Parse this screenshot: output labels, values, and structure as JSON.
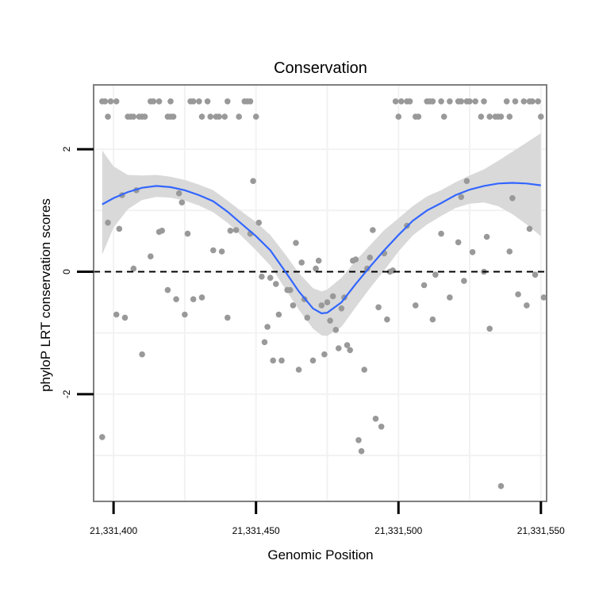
{
  "chart_data": {
    "type": "scatter",
    "title": "Conservation",
    "xlabel": "Genomic Position",
    "ylabel": "phyloP LRT conservation scores",
    "xlim": [
      21331393,
      21331552
    ],
    "ylim": [
      -3.75,
      3.05
    ],
    "x_ticks": [
      {
        "value": 21331400,
        "label": "21,331,400"
      },
      {
        "value": 21331450,
        "label": "21,331,450"
      },
      {
        "value": 21331500,
        "label": "21,331,500"
      },
      {
        "value": 21331550,
        "label": "21,331,550"
      }
    ],
    "y_ticks": [
      {
        "value": -2,
        "label": "-2"
      },
      {
        "value": 0,
        "label": "0"
      },
      {
        "value": 2,
        "label": "2"
      }
    ],
    "grid": true,
    "reference_line": {
      "y": 0,
      "style": "dashed"
    },
    "colors": {
      "points": "#999999",
      "smooth": "#3366ff",
      "ribbon": "#d9d9d9",
      "panel_border": "#7f7f7f",
      "grid": "#f2f2f2"
    },
    "points": [
      {
        "x": 21331396,
        "y": 2.78
      },
      {
        "x": 21331397,
        "y": 2.78
      },
      {
        "x": 21331399,
        "y": 2.78
      },
      {
        "x": 21331398,
        "y": 2.53
      },
      {
        "x": 21331401,
        "y": 2.78
      },
      {
        "x": 21331407,
        "y": 2.53
      },
      {
        "x": 21331406,
        "y": 2.53
      },
      {
        "x": 21331405,
        "y": 2.53
      },
      {
        "x": 21331409,
        "y": 2.53
      },
      {
        "x": 21331410,
        "y": 2.53
      },
      {
        "x": 21331411,
        "y": 2.53
      },
      {
        "x": 21331413,
        "y": 2.78
      },
      {
        "x": 21331414,
        "y": 2.78
      },
      {
        "x": 21331416,
        "y": 2.78
      },
      {
        "x": 21331420,
        "y": 2.78
      },
      {
        "x": 21331419,
        "y": 2.53
      },
      {
        "x": 21331420,
        "y": 2.53
      },
      {
        "x": 21331421,
        "y": 2.53
      },
      {
        "x": 21331427,
        "y": 2.78
      },
      {
        "x": 21331428,
        "y": 2.78
      },
      {
        "x": 21331430,
        "y": 2.78
      },
      {
        "x": 21331431,
        "y": 2.53
      },
      {
        "x": 21331433,
        "y": 2.78
      },
      {
        "x": 21331434,
        "y": 2.53
      },
      {
        "x": 21331436,
        "y": 2.53
      },
      {
        "x": 21331437,
        "y": 2.53
      },
      {
        "x": 21331439,
        "y": 2.53
      },
      {
        "x": 21331440,
        "y": 2.78
      },
      {
        "x": 21331444,
        "y": 2.53
      },
      {
        "x": 21331446,
        "y": 2.78
      },
      {
        "x": 21331447,
        "y": 2.78
      },
      {
        "x": 21331448,
        "y": 2.78
      },
      {
        "x": 21331450,
        "y": 2.53
      },
      {
        "x": 21331499,
        "y": 2.78
      },
      {
        "x": 21331500,
        "y": 2.53
      },
      {
        "x": 21331501,
        "y": 2.78
      },
      {
        "x": 21331503,
        "y": 2.78
      },
      {
        "x": 21331504,
        "y": 2.78
      },
      {
        "x": 21331506,
        "y": 2.53
      },
      {
        "x": 21331507,
        "y": 2.53
      },
      {
        "x": 21331510,
        "y": 2.78
      },
      {
        "x": 21331511,
        "y": 2.78
      },
      {
        "x": 21331512,
        "y": 2.78
      },
      {
        "x": 21331515,
        "y": 2.78
      },
      {
        "x": 21331516,
        "y": 2.53
      },
      {
        "x": 21331518,
        "y": 2.78
      },
      {
        "x": 21331521,
        "y": 2.78
      },
      {
        "x": 21331522,
        "y": 2.78
      },
      {
        "x": 21331524,
        "y": 2.78
      },
      {
        "x": 21331525,
        "y": 2.78
      },
      {
        "x": 21331527,
        "y": 2.78
      },
      {
        "x": 21331529,
        "y": 2.53
      },
      {
        "x": 21331530,
        "y": 2.78
      },
      {
        "x": 21331532,
        "y": 2.53
      },
      {
        "x": 21331534,
        "y": 2.53
      },
      {
        "x": 21331535,
        "y": 2.53
      },
      {
        "x": 21331536,
        "y": 2.53
      },
      {
        "x": 21331538,
        "y": 2.78
      },
      {
        "x": 21331539,
        "y": 2.53
      },
      {
        "x": 21331541,
        "y": 2.78
      },
      {
        "x": 21331544,
        "y": 2.78
      },
      {
        "x": 21331546,
        "y": 2.78
      },
      {
        "x": 21331547,
        "y": 2.78
      },
      {
        "x": 21331549,
        "y": 2.78
      },
      {
        "x": 21331550,
        "y": 2.53
      },
      {
        "x": 21331396,
        "y": -2.7
      },
      {
        "x": 21331398,
        "y": 0.8
      },
      {
        "x": 21331401,
        "y": -0.7
      },
      {
        "x": 21331402,
        "y": 0.7
      },
      {
        "x": 21331403,
        "y": 1.25
      },
      {
        "x": 21331404,
        "y": -0.75
      },
      {
        "x": 21331407,
        "y": 0.05
      },
      {
        "x": 21331408,
        "y": 1.33
      },
      {
        "x": 21331410,
        "y": -1.35
      },
      {
        "x": 21331413,
        "y": 0.25
      },
      {
        "x": 21331416,
        "y": 0.65
      },
      {
        "x": 21331417,
        "y": 0.67
      },
      {
        "x": 21331419,
        "y": -0.3
      },
      {
        "x": 21331422,
        "y": -0.45
      },
      {
        "x": 21331423,
        "y": 1.28
      },
      {
        "x": 21331424,
        "y": 1.13
      },
      {
        "x": 21331425,
        "y": -0.7
      },
      {
        "x": 21331426,
        "y": 0.62
      },
      {
        "x": 21331428,
        "y": -0.45
      },
      {
        "x": 21331431,
        "y": -0.42
      },
      {
        "x": 21331435,
        "y": 0.35
      },
      {
        "x": 21331438,
        "y": 0.33
      },
      {
        "x": 21331440,
        "y": -0.75
      },
      {
        "x": 21331441,
        "y": 0.67
      },
      {
        "x": 21331443,
        "y": 0.68
      },
      {
        "x": 21331448,
        "y": 0.62
      },
      {
        "x": 21331449,
        "y": 1.48
      },
      {
        "x": 21331451,
        "y": 0.8
      },
      {
        "x": 21331452,
        "y": -0.08
      },
      {
        "x": 21331453,
        "y": -1.15
      },
      {
        "x": 21331454,
        "y": -0.9
      },
      {
        "x": 21331455,
        "y": -0.1
      },
      {
        "x": 21331456,
        "y": -1.45
      },
      {
        "x": 21331457,
        "y": -0.2
      },
      {
        "x": 21331458,
        "y": -0.7
      },
      {
        "x": 21331459,
        "y": -1.45
      },
      {
        "x": 21331461,
        "y": -0.3
      },
      {
        "x": 21331462,
        "y": -0.3
      },
      {
        "x": 21331463,
        "y": -0.55
      },
      {
        "x": 21331464,
        "y": 0.47
      },
      {
        "x": 21331465,
        "y": -1.6
      },
      {
        "x": 21331466,
        "y": 0.15
      },
      {
        "x": 21331467,
        "y": -0.45
      },
      {
        "x": 21331468,
        "y": -0.75
      },
      {
        "x": 21331470,
        "y": -1.45
      },
      {
        "x": 21331471,
        "y": 0.05
      },
      {
        "x": 21331472,
        "y": 0.18
      },
      {
        "x": 21331473,
        "y": -0.55
      },
      {
        "x": 21331474,
        "y": -1.35
      },
      {
        "x": 21331475,
        "y": -0.5
      },
      {
        "x": 21331476,
        "y": -0.8
      },
      {
        "x": 21331477,
        "y": -0.4
      },
      {
        "x": 21331478,
        "y": -0.95
      },
      {
        "x": 21331479,
        "y": -1.25
      },
      {
        "x": 21331480,
        "y": -0.6
      },
      {
        "x": 21331481,
        "y": -0.42
      },
      {
        "x": 21331482,
        "y": -1.2
      },
      {
        "x": 21331483,
        "y": -1.28
      },
      {
        "x": 21331484,
        "y": 0.18
      },
      {
        "x": 21331485,
        "y": 0.2
      },
      {
        "x": 21331486,
        "y": -2.75
      },
      {
        "x": 21331487,
        "y": -2.93
      },
      {
        "x": 21331488,
        "y": -1.6
      },
      {
        "x": 21331489,
        "y": 0.05
      },
      {
        "x": 21331490,
        "y": 0.23
      },
      {
        "x": 21331491,
        "y": 0.68
      },
      {
        "x": 21331492,
        "y": -2.4
      },
      {
        "x": 21331493,
        "y": -0.58
      },
      {
        "x": 21331494,
        "y": -2.53
      },
      {
        "x": 21331495,
        "y": 0.3
      },
      {
        "x": 21331496,
        "y": -0.78
      },
      {
        "x": 21331497,
        "y": 0.0
      },
      {
        "x": 21331498,
        "y": 0.02
      },
      {
        "x": 21331503,
        "y": 0.75
      },
      {
        "x": 21331506,
        "y": -0.55
      },
      {
        "x": 21331509,
        "y": -0.22
      },
      {
        "x": 21331512,
        "y": -0.78
      },
      {
        "x": 21331513,
        "y": -0.05
      },
      {
        "x": 21331515,
        "y": 0.62
      },
      {
        "x": 21331518,
        "y": -0.42
      },
      {
        "x": 21331521,
        "y": 0.48
      },
      {
        "x": 21331522,
        "y": 1.22
      },
      {
        "x": 21331523,
        "y": -0.15
      },
      {
        "x": 21331524,
        "y": 1.48
      },
      {
        "x": 21331526,
        "y": 0.32
      },
      {
        "x": 21331530,
        "y": 0.0
      },
      {
        "x": 21331531,
        "y": 0.57
      },
      {
        "x": 21331532,
        "y": -0.93
      },
      {
        "x": 21331536,
        "y": -3.5
      },
      {
        "x": 21331539,
        "y": 0.33
      },
      {
        "x": 21331540,
        "y": 1.2
      },
      {
        "x": 21331542,
        "y": -0.37
      },
      {
        "x": 21331545,
        "y": -0.55
      },
      {
        "x": 21331546,
        "y": 0.7
      },
      {
        "x": 21331548,
        "y": -0.05
      },
      {
        "x": 21331551,
        "y": -0.42
      }
    ],
    "smooth": {
      "x": [
        21331396,
        21331400,
        21331405,
        21331410,
        21331415,
        21331420,
        21331425,
        21331430,
        21331435,
        21331440,
        21331445,
        21331450,
        21331455,
        21331460,
        21331465,
        21331470,
        21331473,
        21331475,
        21331480,
        21331485,
        21331490,
        21331495,
        21331500,
        21331505,
        21331510,
        21331515,
        21331520,
        21331525,
        21331530,
        21331535,
        21331540,
        21331545,
        21331550
      ],
      "y": [
        1.1,
        1.2,
        1.3,
        1.37,
        1.4,
        1.38,
        1.33,
        1.25,
        1.15,
        0.98,
        0.78,
        0.58,
        0.35,
        0.02,
        -0.32,
        -0.6,
        -0.68,
        -0.67,
        -0.5,
        -0.2,
        0.08,
        0.35,
        0.6,
        0.83,
        1.0,
        1.12,
        1.25,
        1.34,
        1.4,
        1.44,
        1.45,
        1.44,
        1.41
      ],
      "lower": [
        0.28,
        0.72,
        1.02,
        1.17,
        1.22,
        1.21,
        1.16,
        1.08,
        0.97,
        0.8,
        0.58,
        0.35,
        0.1,
        -0.26,
        -0.62,
        -0.93,
        -1.04,
        -1.05,
        -0.9,
        -0.58,
        -0.27,
        0.02,
        0.33,
        0.59,
        0.77,
        0.91,
        1.04,
        1.11,
        1.13,
        1.07,
        0.94,
        0.77,
        0.58
      ],
      "upper": [
        1.98,
        1.72,
        1.58,
        1.57,
        1.58,
        1.55,
        1.5,
        1.42,
        1.33,
        1.16,
        0.98,
        0.81,
        0.6,
        0.3,
        -0.02,
        -0.27,
        -0.32,
        -0.29,
        -0.1,
        0.18,
        0.43,
        0.68,
        0.87,
        1.07,
        1.23,
        1.33,
        1.46,
        1.57,
        1.67,
        1.81,
        1.96,
        2.11,
        2.26
      ]
    }
  }
}
